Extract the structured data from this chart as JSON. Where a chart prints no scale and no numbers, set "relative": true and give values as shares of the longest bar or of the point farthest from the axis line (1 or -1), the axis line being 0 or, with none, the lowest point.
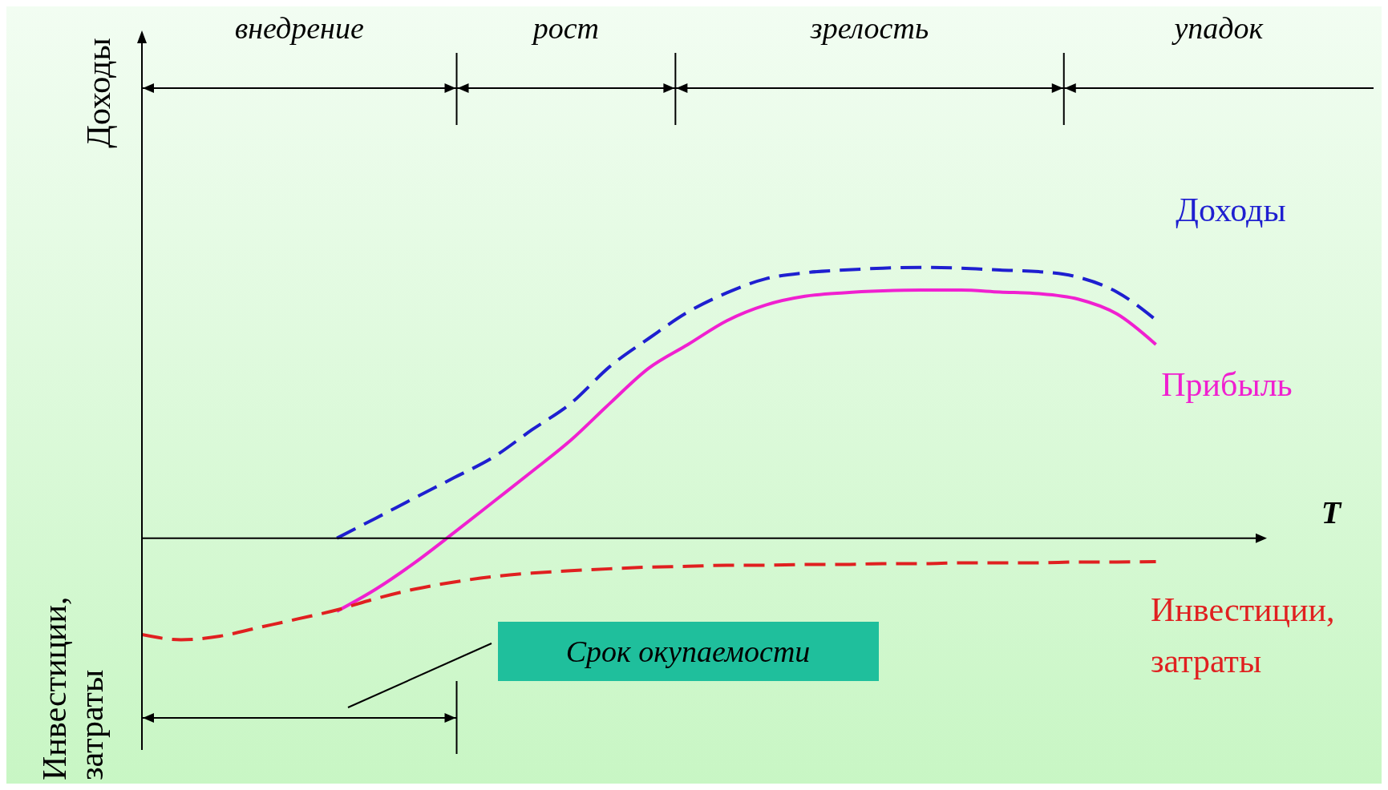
{
  "chart_data": {
    "type": "line",
    "relative": true,
    "ylabel": "Доходы",
    "xlabel": "T",
    "categories": [
      null,
      null,
      null,
      null,
      null,
      null,
      null,
      null,
      null,
      null,
      null,
      null,
      null,
      null,
      null,
      null,
      null,
      null,
      null,
      null,
      null,
      null,
      null,
      null,
      null,
      null,
      null
    ],
    "series": [
      {
        "name": "Доходы",
        "color": "#1f1fd0",
        "line_style": "dashed",
        "values": [
          null,
          null,
          null,
          null,
          null,
          0.0,
          0.074,
          0.149,
          0.223,
          0.298,
          0.4,
          0.498,
          0.634,
          0.738,
          0.835,
          0.906,
          0.958,
          0.98,
          0.99,
          0.997,
          1.0,
          0.997,
          0.99,
          0.984,
          0.964,
          0.909,
          0.806
        ]
      },
      {
        "name": "Прибыль",
        "color": "#f020d0",
        "line_style": "solid",
        "values": [
          null,
          null,
          null,
          null,
          null,
          -0.27,
          -0.188,
          -0.09,
          0.02,
          0.133,
          0.246,
          0.362,
          0.498,
          0.628,
          0.715,
          0.803,
          0.861,
          0.893,
          0.906,
          0.913,
          0.916,
          0.916,
          0.909,
          0.903,
          0.883,
          0.828,
          0.715
        ]
      },
      {
        "name": "Инвестиции, затраты",
        "color": "#e02020",
        "line_style": "dashed",
        "values": [
          -0.356,
          -0.375,
          -0.362,
          -0.33,
          -0.298,
          -0.265,
          -0.223,
          -0.188,
          -0.162,
          -0.142,
          -0.129,
          -0.12,
          -0.113,
          -0.107,
          -0.104,
          -0.1,
          -0.1,
          -0.097,
          -0.097,
          -0.094,
          -0.094,
          -0.091,
          -0.091,
          -0.091,
          -0.088,
          -0.088,
          -0.087
        ]
      }
    ],
    "annotations": [
      "внедрение",
      "рост",
      "зрелость",
      "упадок",
      "Срок окупаемости",
      "Инвестиции, затраты"
    ]
  }
}
